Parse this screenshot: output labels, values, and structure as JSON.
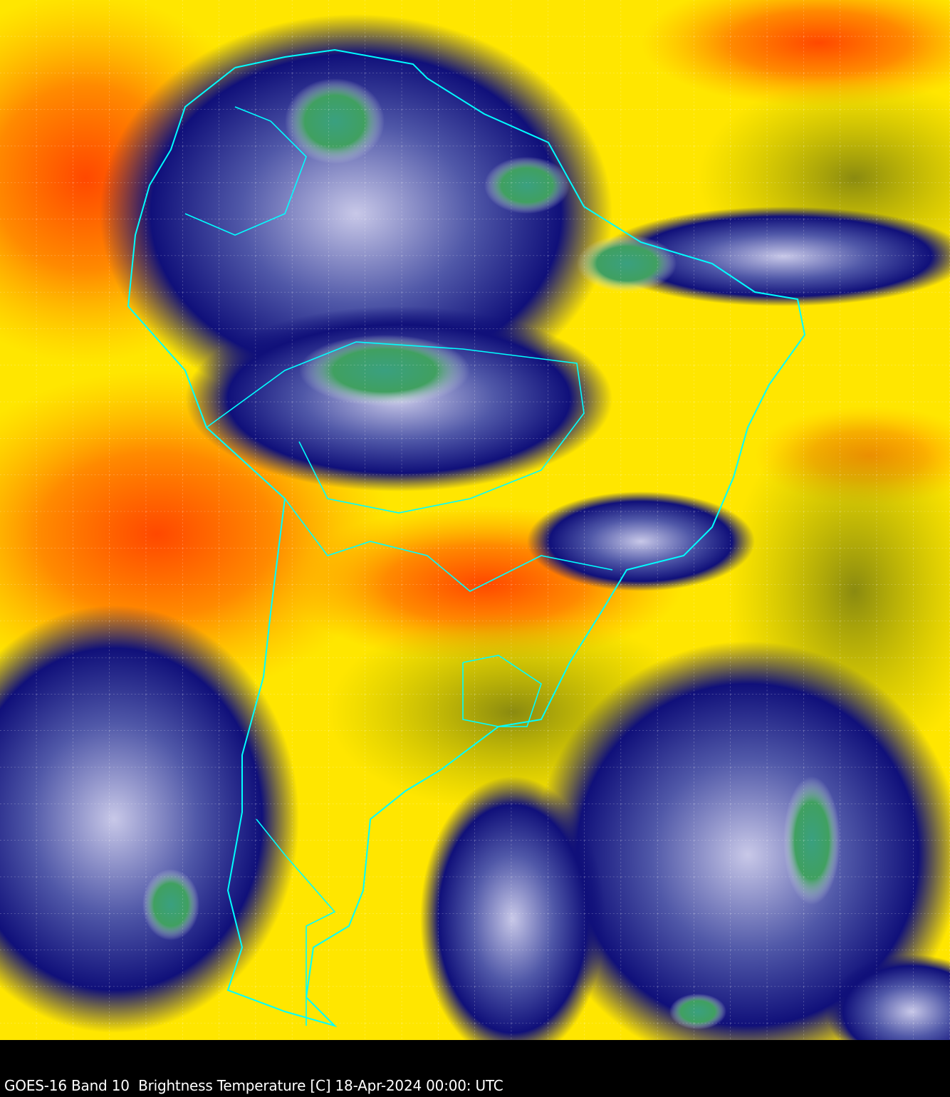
{
  "caption": "GOES-16 Band 10  Brightness Temperature [C] 18-Apr-2024 00:00: UTC",
  "colors": {
    "warm": "#ff5a00",
    "mid": "#ffa500",
    "yellow": "#ffff00",
    "olive": "#8c8c00",
    "cold_blue": "#000080",
    "cloud_white": "#ffffff",
    "coldest_green": "#3c8c3c",
    "coldest_teal": "#20c0a0",
    "border": "#00ffff",
    "grid": "#ffffff"
  }
}
